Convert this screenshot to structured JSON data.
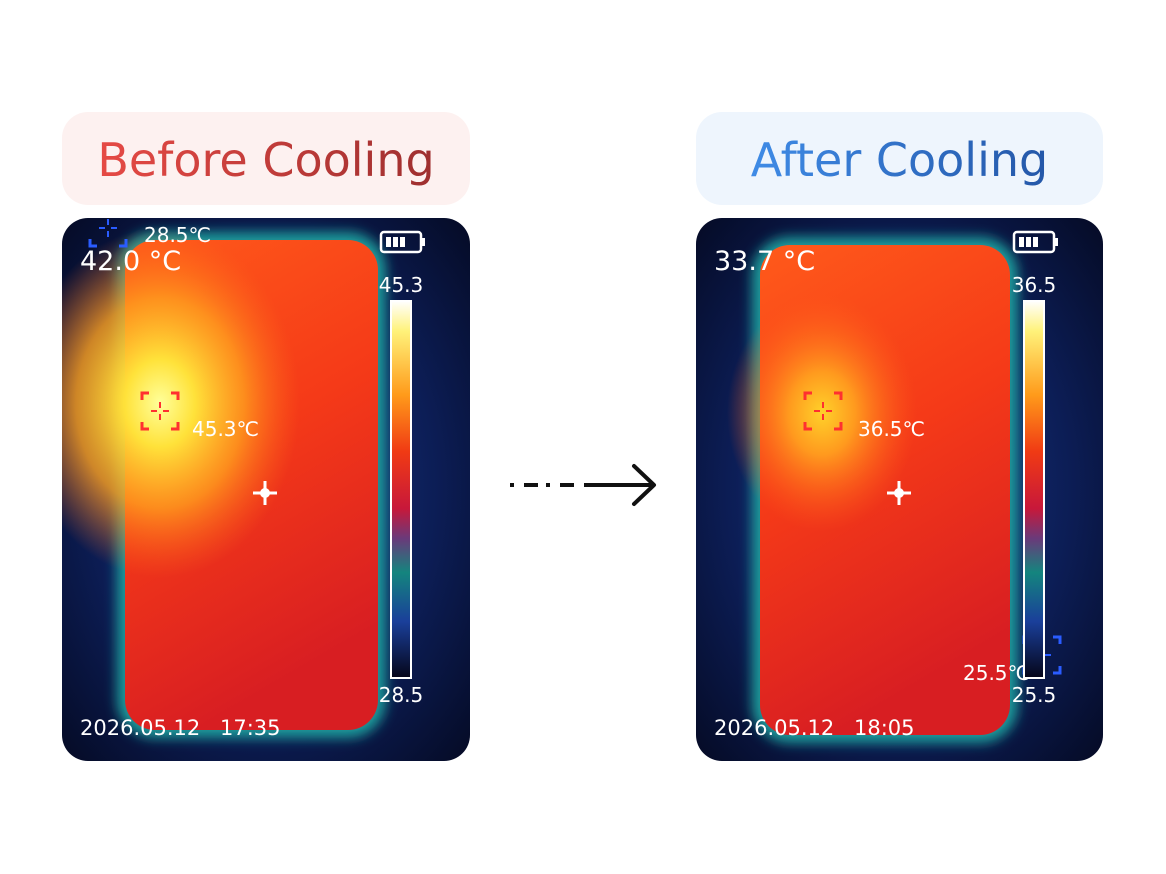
{
  "panels": [
    {
      "title": "Before Cooling",
      "center_temp": "42.0 °C",
      "min_spot": "28.5℃",
      "max_spot": "45.3℃",
      "scale_max": "45.3",
      "scale_min": "28.5",
      "date": "2026.05.12",
      "time": "17:35"
    },
    {
      "title": "After Cooling",
      "center_temp": "33.7 °C",
      "min_spot": "25.5℃",
      "max_spot": "36.5℃",
      "scale_max": "36.5",
      "scale_min": "25.5",
      "date": "2026.05.12",
      "time": "18:05"
    }
  ]
}
